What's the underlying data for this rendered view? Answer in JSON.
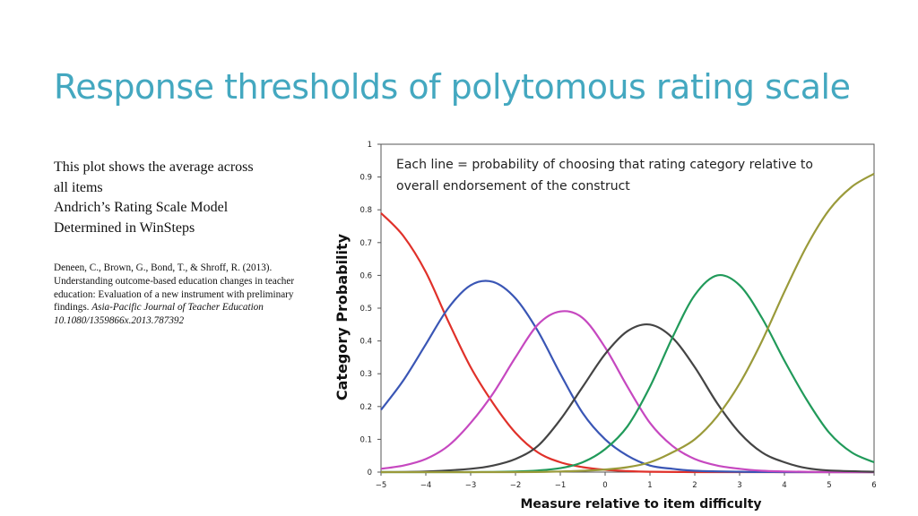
{
  "slide": {
    "title": "Response thresholds of polytomous rating scale",
    "notes": [
      "This plot shows the average across",
      "all items",
      "Andrich’s Rating Scale Model",
      "Determined in WinSteps"
    ],
    "reference": {
      "text": "Deneen, C., Brown, G., Bond, T., & Shroff, R. (2013). Understanding outcome-based education changes in teacher education: Evaluation of a new instrument with preliminary findings. ",
      "journal": "Asia-Pacific Journal of Teacher Education 10.1080/1359866x.2013.787392"
    }
  },
  "chart_data": {
    "type": "line",
    "xlabel": "Measure relative to item difficulty",
    "ylabel": "Category Probability",
    "xlim": [
      -5,
      6
    ],
    "ylim": [
      0,
      1
    ],
    "x_ticks": [
      "−5",
      "−4",
      "−3",
      "−2",
      "−1",
      "0",
      "1",
      "2",
      "3",
      "4",
      "5",
      "6"
    ],
    "y_ticks": [
      "0",
      "0.1",
      "0.2",
      "0.3",
      "0.4",
      "0.5",
      "0.6",
      "0.7",
      "0.8",
      "0.9",
      "1"
    ],
    "annotation": [
      "Each line = probability of choosing that rating category relative to",
      "overall endorsement of the construct"
    ],
    "grid": false,
    "series": [
      {
        "color": "#e0312a",
        "x": [
          -5,
          -4.5,
          -4,
          -3.5,
          -3,
          -2.5,
          -2,
          -1.5,
          -1,
          -0.5,
          0,
          0.5,
          1,
          2,
          3,
          4,
          5,
          6
        ],
        "y": [
          0.79,
          0.72,
          0.61,
          0.46,
          0.32,
          0.21,
          0.12,
          0.06,
          0.03,
          0.015,
          0.007,
          0.003,
          0.001,
          0,
          0,
          0,
          0,
          0
        ]
      },
      {
        "color": "#3a56b5",
        "x": [
          -5,
          -4.5,
          -4,
          -3.5,
          -3,
          -2.5,
          -2,
          -1.5,
          -1,
          -0.5,
          0,
          0.5,
          1,
          1.5,
          2,
          3,
          4,
          5,
          6
        ],
        "y": [
          0.19,
          0.28,
          0.39,
          0.5,
          0.57,
          0.58,
          0.53,
          0.43,
          0.3,
          0.18,
          0.1,
          0.05,
          0.02,
          0.01,
          0.004,
          0.001,
          0,
          0,
          0
        ]
      },
      {
        "color": "#c648c0",
        "x": [
          -5,
          -4.5,
          -4,
          -3.5,
          -3,
          -2.5,
          -2,
          -1.5,
          -1,
          -0.5,
          0,
          0.5,
          1,
          1.5,
          2,
          2.5,
          3,
          3.5,
          4,
          5,
          6
        ],
        "y": [
          0.01,
          0.02,
          0.04,
          0.08,
          0.15,
          0.24,
          0.35,
          0.45,
          0.49,
          0.47,
          0.38,
          0.26,
          0.15,
          0.08,
          0.04,
          0.02,
          0.01,
          0.004,
          0.002,
          0,
          0
        ]
      },
      {
        "color": "#444444",
        "x": [
          -5,
          -4,
          -3,
          -2.5,
          -2,
          -1.5,
          -1,
          -0.5,
          0,
          0.5,
          1,
          1.5,
          2,
          2.5,
          3,
          3.5,
          4,
          4.5,
          5,
          6
        ],
        "y": [
          0,
          0.002,
          0.01,
          0.02,
          0.04,
          0.08,
          0.16,
          0.26,
          0.36,
          0.43,
          0.45,
          0.41,
          0.32,
          0.21,
          0.12,
          0.06,
          0.03,
          0.012,
          0.005,
          0.001
        ]
      },
      {
        "color": "#219a5a",
        "x": [
          -5,
          -3,
          -2,
          -1.5,
          -1,
          -0.5,
          0,
          0.5,
          1,
          1.5,
          2,
          2.5,
          3,
          3.5,
          4,
          4.5,
          5,
          5.5,
          6
        ],
        "y": [
          0,
          0,
          0.002,
          0.005,
          0.012,
          0.03,
          0.07,
          0.14,
          0.26,
          0.41,
          0.54,
          0.6,
          0.57,
          0.47,
          0.34,
          0.22,
          0.12,
          0.06,
          0.03
        ]
      },
      {
        "color": "#9a9a3a",
        "x": [
          -5,
          -2,
          -1,
          -0.5,
          0,
          0.5,
          1,
          1.5,
          2,
          2.5,
          3,
          3.5,
          4,
          4.5,
          5,
          5.5,
          6
        ],
        "y": [
          0,
          0,
          0.002,
          0.004,
          0.008,
          0.015,
          0.03,
          0.06,
          0.1,
          0.17,
          0.27,
          0.4,
          0.55,
          0.69,
          0.8,
          0.87,
          0.91
        ]
      }
    ]
  }
}
